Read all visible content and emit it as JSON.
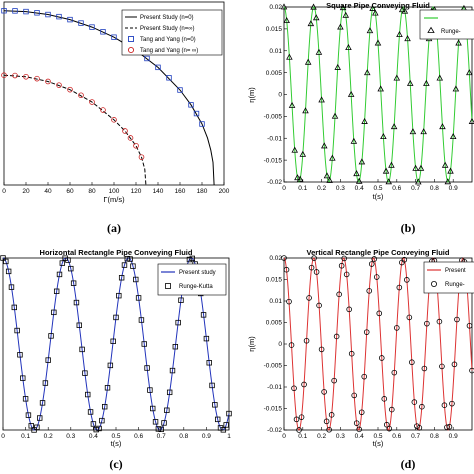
{
  "chart_data": [
    {
      "panel": "(a)",
      "type": "line",
      "title": "",
      "xlabel": "Γ(m/s)",
      "ylabel": "",
      "xlim": [
        0,
        200
      ],
      "ylim": [
        0,
        1.05
      ],
      "xticks": [
        "0",
        "20",
        "40",
        "60",
        "80",
        "100",
        "120",
        "140",
        "160",
        "180",
        "200"
      ],
      "yticks": [],
      "grid": false,
      "legend": "top-right",
      "series": [
        {
          "name": "Present Study (n=0)",
          "style": "line",
          "color": "#000000",
          "x": [
            0,
            20,
            40,
            60,
            80,
            100,
            120,
            140,
            160,
            170,
            180,
            185,
            188,
            190,
            191
          ],
          "y": [
            1.0,
            0.995,
            0.978,
            0.949,
            0.906,
            0.848,
            0.772,
            0.675,
            0.545,
            0.46,
            0.35,
            0.27,
            0.2,
            0.13,
            0.0
          ]
        },
        {
          "name": "Present Study (n=∞)",
          "style": "dashed",
          "color": "#000000",
          "x": [
            0,
            20,
            40,
            60,
            80,
            100,
            110,
            120,
            125,
            128,
            129
          ],
          "y": [
            0.63,
            0.621,
            0.594,
            0.547,
            0.476,
            0.374,
            0.31,
            0.225,
            0.16,
            0.09,
            0.0
          ]
        },
        {
          "name": "Tang and Yang (n=0)",
          "style": "square",
          "color": "#1f3fbf",
          "x": [
            0,
            10,
            20,
            30,
            40,
            50,
            60,
            70,
            80,
            90,
            100,
            110,
            120,
            130,
            140,
            150,
            160,
            170,
            175,
            180
          ],
          "y": [
            1.0,
            0.999,
            0.995,
            0.988,
            0.978,
            0.966,
            0.949,
            0.929,
            0.906,
            0.879,
            0.848,
            0.812,
            0.772,
            0.726,
            0.675,
            0.615,
            0.545,
            0.46,
            0.41,
            0.35
          ]
        },
        {
          "name": "Tang and Yang (n= ∞)",
          "style": "circle",
          "color": "#cc2222",
          "x": [
            0,
            10,
            20,
            30,
            40,
            50,
            60,
            70,
            80,
            90,
            100,
            110,
            115,
            120,
            125
          ],
          "y": [
            0.63,
            0.628,
            0.621,
            0.61,
            0.594,
            0.573,
            0.547,
            0.515,
            0.476,
            0.43,
            0.374,
            0.31,
            0.27,
            0.225,
            0.16
          ]
        }
      ]
    },
    {
      "panel": "(b)",
      "type": "line",
      "title": "Square Pipe Conveying Fluid",
      "xlabel": "t(s)",
      "ylabel": "η(m)",
      "xlim": [
        0,
        1
      ],
      "ylim": [
        -0.02,
        0.02
      ],
      "xticks": [
        "0",
        "0.1",
        "0.2",
        "0.3",
        "0.4",
        "0.5",
        "0.6",
        "0.7",
        "0.8",
        "0.9"
      ],
      "yticks": [
        "0.02",
        "0.015",
        "0.01",
        "0.005",
        "0",
        "-0.005",
        "-0.01",
        "-0.015",
        "-0.02"
      ],
      "grid": false,
      "legend": "top-right",
      "signal": {
        "amplitude": 0.02,
        "cycles": 6.3
      },
      "series": [
        {
          "name": "",
          "style": "line",
          "color": "#33cc33"
        },
        {
          "name": "Runge-",
          "style": "triangle",
          "color": "#000000",
          "markers": 70
        }
      ]
    },
    {
      "panel": "(c)",
      "type": "line",
      "title": "Horizontal Rectangle Pipe Conveying Fluid",
      "xlabel": "t(s)",
      "ylabel": "",
      "xlim": [
        0,
        1
      ],
      "ylim": [
        -0.02,
        0.02
      ],
      "xticks": [
        "0",
        "0.1",
        "0.2",
        "0.3",
        "0.4",
        "0.5",
        "0.6",
        "0.7",
        "0.8",
        "0.9",
        "1"
      ],
      "yticks": [],
      "grid": false,
      "legend": "top-right",
      "signal": {
        "amplitude": 0.02,
        "cycles": 3.6
      },
      "series": [
        {
          "name": "Present study",
          "style": "line",
          "color": "#2233bb"
        },
        {
          "name": "Runge-Kutta",
          "style": "square",
          "color": "#000000",
          "markers": 80
        }
      ]
    },
    {
      "panel": "(d)",
      "type": "line",
      "title": "Vertical Rectangle Pipe Conveying Fluid",
      "xlabel": "t(s)",
      "ylabel": "η(m)",
      "xlim": [
        0,
        1
      ],
      "ylim": [
        -0.02,
        0.02
      ],
      "xticks": [
        "0",
        "0.1",
        "0.2",
        "0.3",
        "0.4",
        "0.5",
        "0.6",
        "0.7",
        "0.8",
        "0.9"
      ],
      "yticks": [
        "0.02",
        "0.015",
        "0.01",
        "0.005",
        "0",
        "-0.005",
        "-0.01",
        "-0.015",
        "-0.02"
      ],
      "grid": false,
      "legend": "top-right",
      "signal": {
        "amplitude": 0.02,
        "cycles": 6.3
      },
      "series": [
        {
          "name": "Present",
          "style": "line",
          "color": "#dd3333"
        },
        {
          "name": "Runge-",
          "style": "circle",
          "color": "#000000",
          "markers": 75
        }
      ]
    }
  ]
}
